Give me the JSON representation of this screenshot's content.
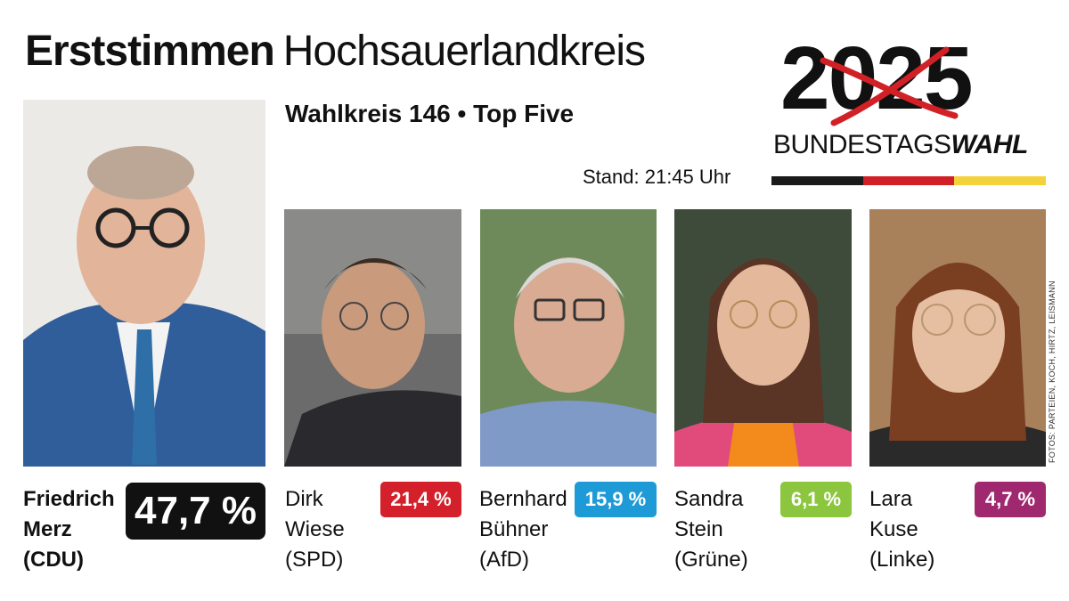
{
  "header": {
    "title_bold": "Erststimmen",
    "title_light": "Hochsauerlandkreis",
    "subtitle": "Wahlkreis 146 • Top Five",
    "stand": "Stand: 21:45 Uhr"
  },
  "logo": {
    "year": "2025",
    "word_regular": "BUNDESTAGS",
    "word_bold": "WAHL",
    "flag_colors": [
      "#1a1a1a",
      "#d12026",
      "#f4d23b"
    ]
  },
  "candidates": [
    {
      "name": "Friedrich\nMerz\n(CDU)",
      "percent": "47,7 %",
      "color": "#111111"
    },
    {
      "name": "Dirk\nWiese\n(SPD)",
      "percent": "21,4 %",
      "color": "#d3202a"
    },
    {
      "name": "Bernhard\nBühner\n(AfD)",
      "percent": "15,9 %",
      "color": "#1e9ad6"
    },
    {
      "name": "Sandra\nStein\n(Grüne)",
      "percent": "6,1 %",
      "color": "#8cc63e"
    },
    {
      "name": "Lara\nKuse\n(Linke)",
      "percent": "4,7 %",
      "color": "#a0286e"
    }
  ],
  "credit": "FOTOS: PARTEIEN, KOCH, HIRTZ, LEISMANN"
}
